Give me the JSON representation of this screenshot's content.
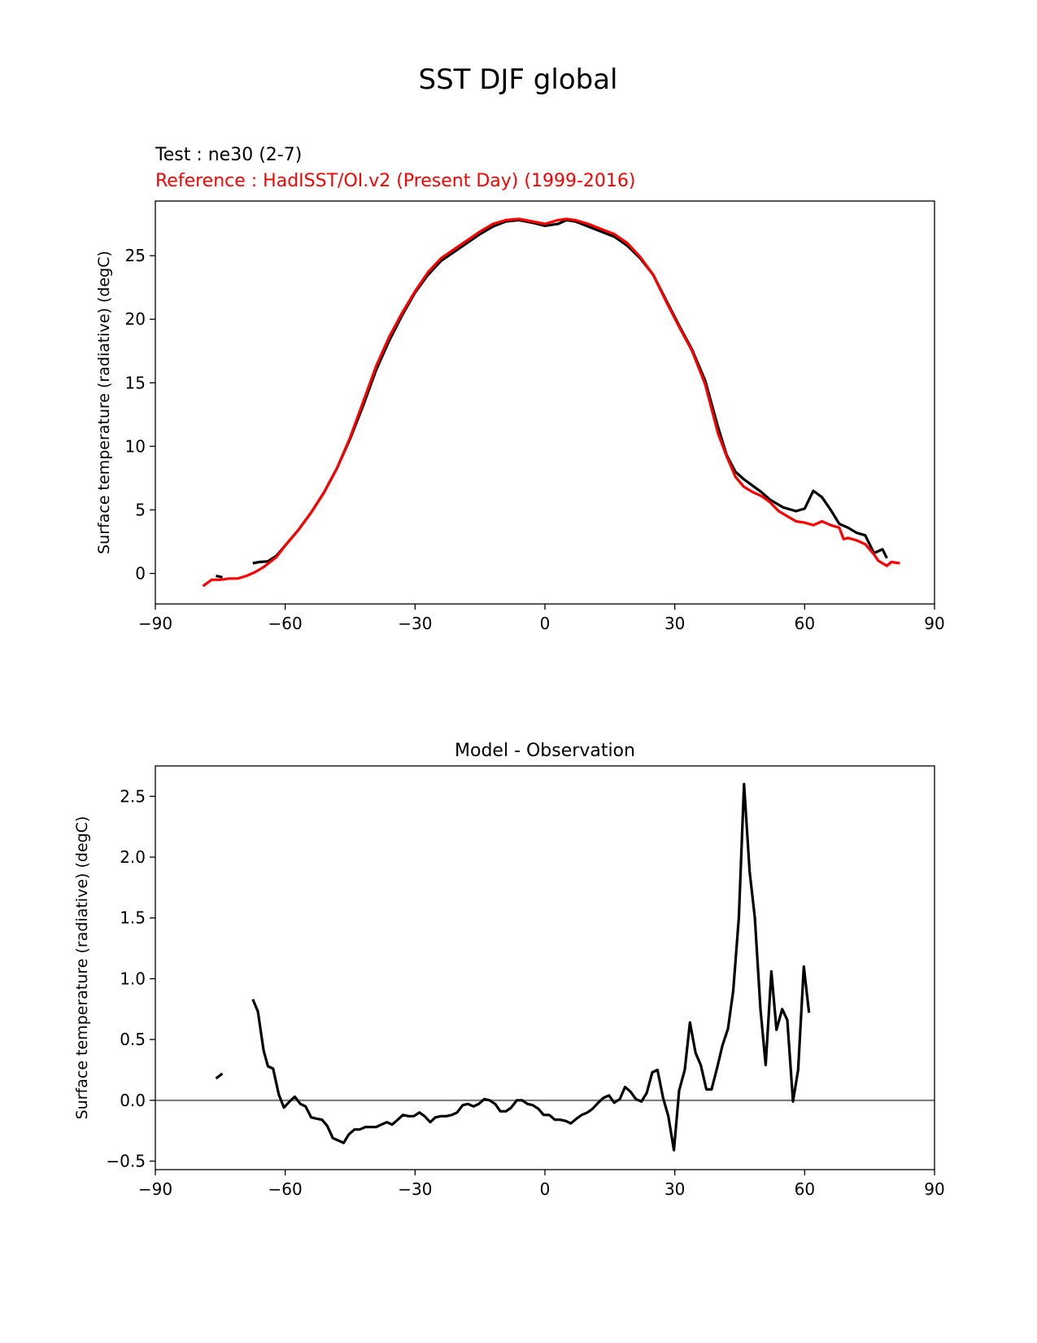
{
  "figure": {
    "suptitle": "SST DJF global",
    "test_label": "Test : ne30 (2-7)",
    "reference_label": "Reference : HadISST/OI.v2 (Present Day) (1999-2016)"
  },
  "colors": {
    "test": "#000000",
    "reference": "#ff0000",
    "zero_line": "#808080"
  },
  "chart_data": [
    {
      "type": "line",
      "title": "",
      "xlabel": "",
      "ylabel": "Surface temperature (radiative) (degC)",
      "xlim": [
        -90,
        90
      ],
      "ylim": [
        -2.4,
        29.3
      ],
      "xticks": [
        -90,
        -60,
        -30,
        0,
        30,
        60,
        90
      ],
      "xtick_labels": [
        "−90",
        "−60",
        "−30",
        "0",
        "30",
        "60",
        "90"
      ],
      "yticks": [
        0,
        5,
        10,
        15,
        20,
        25
      ],
      "ytick_labels": [
        "0",
        "5",
        "10",
        "15",
        "20",
        "25"
      ],
      "grid": false,
      "series": [
        {
          "name": "Test : ne30 (2-7)",
          "color": "#000000",
          "segments": [
            [
              [
                -76,
                -0.2
              ],
              [
                -74.5,
                -0.3
              ]
            ],
            [
              [
                -67.5,
                0.8
              ],
              [
                -66,
                0.9
              ],
              [
                -64,
                0.95
              ],
              [
                -62,
                1.4
              ],
              [
                -60,
                2.2
              ],
              [
                -57,
                3.4
              ],
              [
                -54,
                4.8
              ],
              [
                -51,
                6.4
              ],
              [
                -48,
                8.3
              ],
              [
                -45,
                10.6
              ],
              [
                -42,
                13.2
              ],
              [
                -39,
                16.0
              ],
              [
                -36,
                18.3
              ],
              [
                -33,
                20.3
              ],
              [
                -30,
                22.1
              ],
              [
                -27,
                23.5
              ],
              [
                -24,
                24.6
              ],
              [
                -21,
                25.3
              ],
              [
                -18,
                26.0
              ],
              [
                -15,
                26.7
              ],
              [
                -12,
                27.3
              ],
              [
                -9,
                27.7
              ],
              [
                -6,
                27.8
              ],
              [
                -3,
                27.6
              ],
              [
                0,
                27.35
              ],
              [
                3,
                27.5
              ],
              [
                5,
                27.8
              ],
              [
                7,
                27.7
              ],
              [
                10,
                27.3
              ],
              [
                13,
                26.9
              ],
              [
                16,
                26.5
              ],
              [
                19,
                25.8
              ],
              [
                22,
                24.8
              ],
              [
                25,
                23.5
              ],
              [
                28,
                21.5
              ],
              [
                31,
                19.5
              ],
              [
                34,
                17.6
              ],
              [
                37,
                15.2
              ],
              [
                40,
                11.5
              ],
              [
                42,
                9.3
              ],
              [
                44,
                8.0
              ],
              [
                46,
                7.4
              ],
              [
                48,
                6.9
              ],
              [
                50,
                6.4
              ],
              [
                52,
                5.8
              ],
              [
                55,
                5.2
              ],
              [
                58,
                4.9
              ],
              [
                60,
                5.1
              ],
              [
                62,
                6.5
              ],
              [
                64,
                6.0
              ],
              [
                66,
                5.0
              ],
              [
                68,
                3.9
              ],
              [
                70,
                3.6
              ],
              [
                72,
                3.2
              ],
              [
                74,
                3.0
              ],
              [
                76,
                1.6
              ],
              [
                78,
                1.9
              ],
              [
                79,
                1.2
              ]
            ]
          ]
        },
        {
          "name": "Reference : HadISST/OI.v2 (Present Day) (1999-2016)",
          "color": "#ff0000",
          "segments": [
            [
              [
                -79,
                -1.0
              ],
              [
                -77,
                -0.5
              ],
              [
                -75,
                -0.5
              ],
              [
                -73,
                -0.4
              ],
              [
                -71,
                -0.4
              ],
              [
                -69,
                -0.2
              ],
              [
                -67,
                0.1
              ],
              [
                -65,
                0.5
              ],
              [
                -62,
                1.3
              ],
              [
                -60,
                2.2
              ],
              [
                -57,
                3.4
              ],
              [
                -54,
                4.8
              ],
              [
                -51,
                6.4
              ],
              [
                -48,
                8.3
              ],
              [
                -45,
                10.7
              ],
              [
                -42,
                13.5
              ],
              [
                -39,
                16.3
              ],
              [
                -36,
                18.6
              ],
              [
                -33,
                20.5
              ],
              [
                -30,
                22.2
              ],
              [
                -27,
                23.7
              ],
              [
                -24,
                24.8
              ],
              [
                -21,
                25.5
              ],
              [
                -18,
                26.2
              ],
              [
                -15,
                26.9
              ],
              [
                -12,
                27.5
              ],
              [
                -9,
                27.8
              ],
              [
                -6,
                27.9
              ],
              [
                -3,
                27.7
              ],
              [
                0,
                27.5
              ],
              [
                3,
                27.8
              ],
              [
                5,
                27.9
              ],
              [
                7,
                27.8
              ],
              [
                10,
                27.5
              ],
              [
                13,
                27.1
              ],
              [
                16,
                26.7
              ],
              [
                19,
                26.0
              ],
              [
                22,
                24.9
              ],
              [
                25,
                23.5
              ],
              [
                28,
                21.4
              ],
              [
                31,
                19.4
              ],
              [
                34,
                17.5
              ],
              [
                37,
                14.9
              ],
              [
                40,
                11.0
              ],
              [
                42,
                9.2
              ],
              [
                44,
                7.6
              ],
              [
                46,
                6.8
              ],
              [
                48,
                6.4
              ],
              [
                50,
                6.1
              ],
              [
                52,
                5.6
              ],
              [
                54,
                4.9
              ],
              [
                56,
                4.5
              ],
              [
                58,
                4.1
              ],
              [
                60,
                4.0
              ],
              [
                62,
                3.8
              ],
              [
                64,
                4.1
              ],
              [
                66,
                3.8
              ],
              [
                68,
                3.6
              ],
              [
                69,
                2.7
              ],
              [
                70,
                2.8
              ],
              [
                72,
                2.6
              ],
              [
                74,
                2.3
              ],
              [
                76,
                1.5
              ],
              [
                77,
                1.0
              ],
              [
                79,
                0.6
              ],
              [
                80,
                0.9
              ],
              [
                82,
                0.8
              ]
            ]
          ]
        }
      ]
    },
    {
      "type": "line",
      "title": "Model - Observation",
      "xlabel": "",
      "ylabel": "Surface temperature (radiative) (degC)",
      "xlim": [
        -90,
        90
      ],
      "ylim": [
        -0.57,
        2.75
      ],
      "xticks": [
        -90,
        -60,
        -30,
        0,
        30,
        60,
        90
      ],
      "xtick_labels": [
        "−90",
        "−60",
        "−30",
        "0",
        "30",
        "60",
        "90"
      ],
      "yticks": [
        -0.5,
        0.0,
        0.5,
        1.0,
        1.5,
        2.0,
        2.5
      ],
      "ytick_labels": [
        "−0.5",
        "0.0",
        "0.5",
        "1.0",
        "1.5",
        "2.0",
        "2.5"
      ],
      "grid": false,
      "reference_line_y": 0.0,
      "series": [
        {
          "name": "",
          "color": "#000000",
          "segments": [
            [
              [
                -76,
                0.18
              ],
              [
                -74.5,
                0.22
              ]
            ],
            [
              [
                -67.5,
                0.83
              ],
              [
                -66.3,
                0.73
              ],
              [
                -65,
                0.41
              ],
              [
                -64,
                0.28
              ],
              [
                -62.8,
                0.26
              ],
              [
                -61.5,
                0.05
              ],
              [
                -60.3,
                -0.06
              ],
              [
                -59,
                -0.01
              ],
              [
                -57.8,
                0.03
              ],
              [
                -56.5,
                -0.03
              ],
              [
                -55.3,
                -0.05
              ],
              [
                -54,
                -0.14
              ],
              [
                -52.8,
                -0.15
              ],
              [
                -51.5,
                -0.16
              ],
              [
                -50.3,
                -0.21
              ],
              [
                -49,
                -0.31
              ],
              [
                -47.8,
                -0.33
              ],
              [
                -46.5,
                -0.35
              ],
              [
                -45.3,
                -0.28
              ],
              [
                -44,
                -0.24
              ],
              [
                -42.8,
                -0.24
              ],
              [
                -41.5,
                -0.22
              ],
              [
                -40.3,
                -0.22
              ],
              [
                -39,
                -0.22
              ],
              [
                -37.8,
                -0.2
              ],
              [
                -36.5,
                -0.18
              ],
              [
                -35.3,
                -0.2
              ],
              [
                -34,
                -0.16
              ],
              [
                -32.8,
                -0.12
              ],
              [
                -31.5,
                -0.13
              ],
              [
                -30.3,
                -0.13
              ],
              [
                -29,
                -0.1
              ],
              [
                -27.8,
                -0.13
              ],
              [
                -26.5,
                -0.18
              ],
              [
                -25.3,
                -0.14
              ],
              [
                -24,
                -0.13
              ],
              [
                -22.8,
                -0.13
              ],
              [
                -21.5,
                -0.12
              ],
              [
                -20.3,
                -0.1
              ],
              [
                -19,
                -0.04
              ],
              [
                -17.8,
                -0.03
              ],
              [
                -16.5,
                -0.05
              ],
              [
                -15.3,
                -0.03
              ],
              [
                -14,
                0.01
              ],
              [
                -12.8,
                0.0
              ],
              [
                -11.5,
                -0.03
              ],
              [
                -10.3,
                -0.09
              ],
              [
                -9,
                -0.09
              ],
              [
                -7.8,
                -0.06
              ],
              [
                -6.5,
                0.0
              ],
              [
                -5.3,
                0.0
              ],
              [
                -4,
                -0.03
              ],
              [
                -2.8,
                -0.04
              ],
              [
                -1.5,
                -0.07
              ],
              [
                -0.3,
                -0.12
              ],
              [
                1,
                -0.12
              ],
              [
                2.3,
                -0.16
              ],
              [
                3.5,
                -0.16
              ],
              [
                4.8,
                -0.17
              ],
              [
                6,
                -0.19
              ],
              [
                7.3,
                -0.15
              ],
              [
                8.5,
                -0.12
              ],
              [
                9.8,
                -0.1
              ],
              [
                11,
                -0.07
              ],
              [
                12.3,
                -0.02
              ],
              [
                13.5,
                0.02
              ],
              [
                14.8,
                0.04
              ],
              [
                16,
                -0.02
              ],
              [
                17.3,
                0.01
              ],
              [
                18.5,
                0.11
              ],
              [
                19.8,
                0.07
              ],
              [
                21,
                0.01
              ],
              [
                22.3,
                -0.01
              ],
              [
                23.5,
                0.06
              ],
              [
                24.8,
                0.23
              ],
              [
                26,
                0.25
              ],
              [
                27.3,
                0.02
              ],
              [
                28.5,
                -0.13
              ],
              [
                29.8,
                -0.41
              ],
              [
                31,
                0.08
              ],
              [
                32.3,
                0.25
              ],
              [
                33.5,
                0.64
              ],
              [
                34.8,
                0.39
              ],
              [
                36,
                0.29
              ],
              [
                37.3,
                0.09
              ],
              [
                38.5,
                0.09
              ],
              [
                39.8,
                0.27
              ],
              [
                41,
                0.45
              ],
              [
                42.3,
                0.59
              ],
              [
                43.5,
                0.9
              ],
              [
                44.8,
                1.5
              ],
              [
                46,
                2.6
              ],
              [
                47.3,
                1.88
              ],
              [
                48.5,
                1.5
              ],
              [
                49.8,
                0.75
              ],
              [
                51,
                0.29
              ],
              [
                52.3,
                1.06
              ],
              [
                53.5,
                0.58
              ],
              [
                54.8,
                0.75
              ],
              [
                56,
                0.66
              ],
              [
                57.3,
                -0.01
              ],
              [
                58.5,
                0.25
              ],
              [
                59.8,
                1.1
              ],
              [
                61,
                0.72
              ]
            ]
          ]
        }
      ]
    }
  ]
}
